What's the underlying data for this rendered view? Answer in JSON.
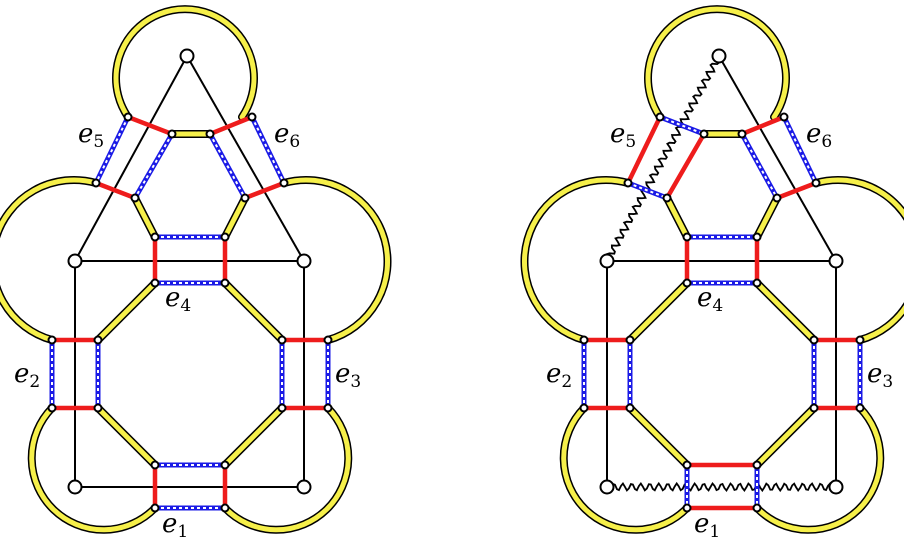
{
  "figure": {
    "panels": [
      {
        "id": "left",
        "edge_labels": [
          {
            "base": "e",
            "sub": "1"
          },
          {
            "base": "e",
            "sub": "2"
          },
          {
            "base": "e",
            "sub": "3"
          },
          {
            "base": "e",
            "sub": "4"
          },
          {
            "base": "e",
            "sub": "5"
          },
          {
            "base": "e",
            "sub": "6"
          }
        ]
      },
      {
        "id": "right",
        "edge_labels": [
          {
            "base": "e",
            "sub": "1"
          },
          {
            "base": "e",
            "sub": "2"
          },
          {
            "base": "e",
            "sub": "3"
          },
          {
            "base": "e",
            "sub": "4"
          },
          {
            "base": "e",
            "sub": "5"
          },
          {
            "base": "e",
            "sub": "6"
          }
        ]
      }
    ],
    "colors": {
      "ring_fill": "#f6f04a",
      "ring_outline": "#000000",
      "matching_red": "#ee1c1c",
      "matching_blue": "#1a1ae6",
      "graph_edge": "#000000",
      "vertex_fill": "#ffffff"
    }
  }
}
